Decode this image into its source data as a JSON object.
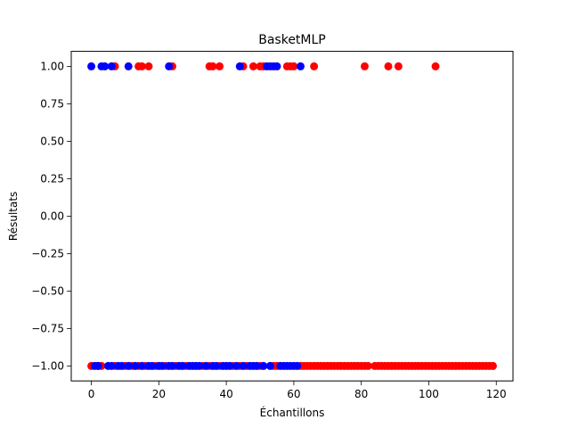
{
  "chart_data": {
    "type": "scatter",
    "title": "BasketMLP",
    "xlabel": "Échantillons",
    "ylabel": "Résultats",
    "xlim": [
      -5.95,
      124.95
    ],
    "ylim": [
      -1.1,
      1.1
    ],
    "xticks": [
      0,
      20,
      40,
      60,
      80,
      100,
      120
    ],
    "xtick_labels": [
      "0",
      "20",
      "40",
      "60",
      "80",
      "100",
      "120"
    ],
    "yticks": [
      -1.0,
      -0.75,
      -0.5,
      -0.25,
      0.0,
      0.25,
      0.5,
      0.75,
      1.0
    ],
    "ytick_labels": [
      "−1.00",
      "−0.75",
      "−0.50",
      "−0.25",
      "0.00",
      "0.25",
      "0.50",
      "0.75",
      "1.00"
    ],
    "grid": false,
    "legend": "none",
    "colors": {
      "series_red": "#ff0000",
      "series_blue": "#0000ff"
    },
    "series": [
      {
        "color": "#ff0000",
        "points": [
          [
            7,
            1
          ],
          [
            14,
            1
          ],
          [
            15,
            1
          ],
          [
            17,
            1
          ],
          [
            24,
            1
          ],
          [
            35,
            1
          ],
          [
            36,
            1
          ],
          [
            38,
            1
          ],
          [
            45,
            1
          ],
          [
            48,
            1
          ],
          [
            50,
            1
          ],
          [
            51,
            1
          ],
          [
            58,
            1
          ],
          [
            59,
            1
          ],
          [
            60,
            1
          ],
          [
            66,
            1
          ],
          [
            81,
            1
          ],
          [
            88,
            1
          ],
          [
            91,
            1
          ],
          [
            102,
            1
          ],
          [
            0,
            -1
          ],
          [
            2,
            -1
          ],
          [
            3,
            -1
          ],
          [
            7,
            -1
          ],
          [
            10,
            -1
          ],
          [
            12,
            -1
          ],
          [
            14,
            -1
          ],
          [
            16,
            -1
          ],
          [
            19,
            -1
          ],
          [
            22,
            -1
          ],
          [
            25,
            -1
          ],
          [
            28,
            -1
          ],
          [
            33,
            -1
          ],
          [
            35,
            -1
          ],
          [
            38,
            -1
          ],
          [
            42,
            -1
          ],
          [
            44,
            -1
          ],
          [
            46,
            -1
          ],
          [
            50,
            -1
          ],
          [
            54,
            -1
          ],
          [
            55,
            -1
          ],
          [
            62,
            -1
          ],
          [
            63,
            -1
          ],
          [
            64,
            -1
          ],
          [
            65,
            -1
          ],
          [
            66,
            -1
          ],
          [
            67,
            -1
          ],
          [
            68,
            -1
          ],
          [
            69,
            -1
          ],
          [
            70,
            -1
          ],
          [
            71,
            -1
          ],
          [
            72,
            -1
          ],
          [
            73,
            -1
          ],
          [
            74,
            -1
          ],
          [
            75,
            -1
          ],
          [
            76,
            -1
          ],
          [
            77,
            -1
          ],
          [
            78,
            -1
          ],
          [
            79,
            -1
          ],
          [
            80,
            -1
          ],
          [
            81,
            -1
          ],
          [
            82,
            -1
          ],
          [
            84,
            -1
          ],
          [
            85,
            -1
          ],
          [
            86,
            -1
          ],
          [
            87,
            -1
          ],
          [
            88,
            -1
          ],
          [
            89,
            -1
          ],
          [
            90,
            -1
          ],
          [
            91,
            -1
          ],
          [
            92,
            -1
          ],
          [
            93,
            -1
          ],
          [
            94,
            -1
          ],
          [
            95,
            -1
          ],
          [
            96,
            -1
          ],
          [
            97,
            -1
          ],
          [
            98,
            -1
          ],
          [
            99,
            -1
          ],
          [
            100,
            -1
          ],
          [
            101,
            -1
          ],
          [
            102,
            -1
          ],
          [
            103,
            -1
          ],
          [
            104,
            -1
          ],
          [
            105,
            -1
          ],
          [
            106,
            -1
          ],
          [
            107,
            -1
          ],
          [
            108,
            -1
          ],
          [
            109,
            -1
          ],
          [
            110,
            -1
          ],
          [
            111,
            -1
          ],
          [
            112,
            -1
          ],
          [
            113,
            -1
          ],
          [
            114,
            -1
          ],
          [
            115,
            -1
          ],
          [
            116,
            -1
          ],
          [
            117,
            -1
          ],
          [
            118,
            -1
          ],
          [
            119,
            -1
          ]
        ]
      },
      {
        "color": "#0000ff",
        "points": [
          [
            0,
            1
          ],
          [
            3,
            1
          ],
          [
            4,
            1
          ],
          [
            6,
            1
          ],
          [
            11,
            1
          ],
          [
            23,
            1
          ],
          [
            44,
            1
          ],
          [
            52,
            1
          ],
          [
            53,
            1
          ],
          [
            54,
            1
          ],
          [
            55,
            1
          ],
          [
            62,
            1
          ],
          [
            1,
            -1
          ],
          [
            2,
            -1
          ],
          [
            5,
            -1
          ],
          [
            6,
            -1
          ],
          [
            8,
            -1
          ],
          [
            9,
            -1
          ],
          [
            11,
            -1
          ],
          [
            13,
            -1
          ],
          [
            15,
            -1
          ],
          [
            17,
            -1
          ],
          [
            18,
            -1
          ],
          [
            20,
            -1
          ],
          [
            21,
            -1
          ],
          [
            23,
            -1
          ],
          [
            24,
            -1
          ],
          [
            26,
            -1
          ],
          [
            27,
            -1
          ],
          [
            29,
            -1
          ],
          [
            30,
            -1
          ],
          [
            31,
            -1
          ],
          [
            32,
            -1
          ],
          [
            34,
            -1
          ],
          [
            36,
            -1
          ],
          [
            37,
            -1
          ],
          [
            39,
            -1
          ],
          [
            40,
            -1
          ],
          [
            41,
            -1
          ],
          [
            43,
            -1
          ],
          [
            45,
            -1
          ],
          [
            47,
            -1
          ],
          [
            48,
            -1
          ],
          [
            49,
            -1
          ],
          [
            51,
            -1
          ],
          [
            53,
            -1
          ],
          [
            56,
            -1
          ],
          [
            57,
            -1
          ],
          [
            58,
            -1
          ],
          [
            59,
            -1
          ],
          [
            60,
            -1
          ],
          [
            61,
            -1
          ]
        ]
      }
    ]
  }
}
